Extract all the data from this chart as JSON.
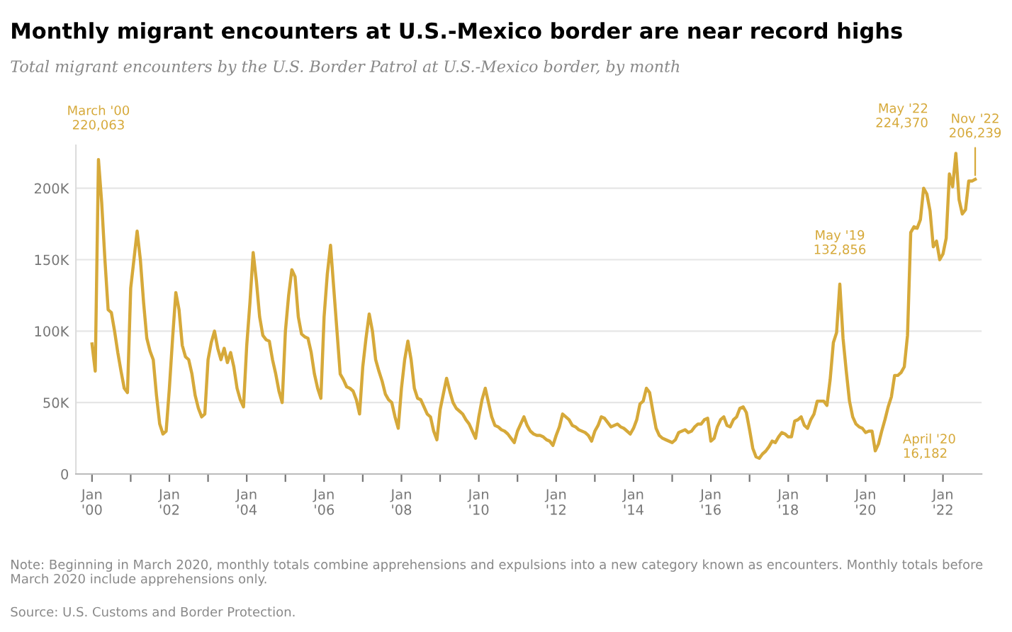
{
  "chart_data": {
    "type": "line",
    "title": "Monthly migrant encounters at U.S.-Mexico border are near record highs",
    "subtitle": "Total migrant encounters by the U.S. Border Patrol at U.S.-Mexico border, by month",
    "x": [
      "2000-01",
      "2000-02",
      "2000-03",
      "2000-04",
      "2000-05",
      "2000-06",
      "2000-07",
      "2000-08",
      "2000-09",
      "2000-10",
      "2000-11",
      "2000-12",
      "2001-01",
      "2001-02",
      "2001-03",
      "2001-04",
      "2001-05",
      "2001-06",
      "2001-07",
      "2001-08",
      "2001-09",
      "2001-10",
      "2001-11",
      "2001-12",
      "2002-01",
      "2002-02",
      "2002-03",
      "2002-04",
      "2002-05",
      "2002-06",
      "2002-07",
      "2002-08",
      "2002-09",
      "2002-10",
      "2002-11",
      "2002-12",
      "2003-01",
      "2003-02",
      "2003-03",
      "2003-04",
      "2003-05",
      "2003-06",
      "2003-07",
      "2003-08",
      "2003-09",
      "2003-10",
      "2003-11",
      "2003-12",
      "2004-01",
      "2004-02",
      "2004-03",
      "2004-04",
      "2004-05",
      "2004-06",
      "2004-07",
      "2004-08",
      "2004-09",
      "2004-10",
      "2004-11",
      "2004-12",
      "2005-01",
      "2005-02",
      "2005-03",
      "2005-04",
      "2005-05",
      "2005-06",
      "2005-07",
      "2005-08",
      "2005-09",
      "2005-10",
      "2005-11",
      "2005-12",
      "2006-01",
      "2006-02",
      "2006-03",
      "2006-04",
      "2006-05",
      "2006-06",
      "2006-07",
      "2006-08",
      "2006-09",
      "2006-10",
      "2006-11",
      "2006-12",
      "2007-01",
      "2007-02",
      "2007-03",
      "2007-04",
      "2007-05",
      "2007-06",
      "2007-07",
      "2007-08",
      "2007-09",
      "2007-10",
      "2007-11",
      "2007-12",
      "2008-01",
      "2008-02",
      "2008-03",
      "2008-04",
      "2008-05",
      "2008-06",
      "2008-07",
      "2008-08",
      "2008-09",
      "2008-10",
      "2008-11",
      "2008-12",
      "2009-01",
      "2009-02",
      "2009-03",
      "2009-04",
      "2009-05",
      "2009-06",
      "2009-07",
      "2009-08",
      "2009-09",
      "2009-10",
      "2009-11",
      "2009-12",
      "2010-01",
      "2010-02",
      "2010-03",
      "2010-04",
      "2010-05",
      "2010-06",
      "2010-07",
      "2010-08",
      "2010-09",
      "2010-10",
      "2010-11",
      "2010-12",
      "2011-01",
      "2011-02",
      "2011-03",
      "2011-04",
      "2011-05",
      "2011-06",
      "2011-07",
      "2011-08",
      "2011-09",
      "2011-10",
      "2011-11",
      "2011-12",
      "2012-01",
      "2012-02",
      "2012-03",
      "2012-04",
      "2012-05",
      "2012-06",
      "2012-07",
      "2012-08",
      "2012-09",
      "2012-10",
      "2012-11",
      "2012-12",
      "2013-01",
      "2013-02",
      "2013-03",
      "2013-04",
      "2013-05",
      "2013-06",
      "2013-07",
      "2013-08",
      "2013-09",
      "2013-10",
      "2013-11",
      "2013-12",
      "2014-01",
      "2014-02",
      "2014-03",
      "2014-04",
      "2014-05",
      "2014-06",
      "2014-07",
      "2014-08",
      "2014-09",
      "2014-10",
      "2014-11",
      "2014-12",
      "2015-01",
      "2015-02",
      "2015-03",
      "2015-04",
      "2015-05",
      "2015-06",
      "2015-07",
      "2015-08",
      "2015-09",
      "2015-10",
      "2015-11",
      "2015-12",
      "2016-01",
      "2016-02",
      "2016-03",
      "2016-04",
      "2016-05",
      "2016-06",
      "2016-07",
      "2016-08",
      "2016-09",
      "2016-10",
      "2016-11",
      "2016-12",
      "2017-01",
      "2017-02",
      "2017-03",
      "2017-04",
      "2017-05",
      "2017-06",
      "2017-07",
      "2017-08",
      "2017-09",
      "2017-10",
      "2017-11",
      "2017-12",
      "2018-01",
      "2018-02",
      "2018-03",
      "2018-04",
      "2018-05",
      "2018-06",
      "2018-07",
      "2018-08",
      "2018-09",
      "2018-10",
      "2018-11",
      "2018-12",
      "2019-01",
      "2019-02",
      "2019-03",
      "2019-04",
      "2019-05",
      "2019-06",
      "2019-07",
      "2019-08",
      "2019-09",
      "2019-10",
      "2019-11",
      "2019-12",
      "2020-01",
      "2020-02",
      "2020-03",
      "2020-04",
      "2020-05",
      "2020-06",
      "2020-07",
      "2020-08",
      "2020-09",
      "2020-10",
      "2020-11",
      "2020-12",
      "2021-01",
      "2021-02",
      "2021-03",
      "2021-04",
      "2021-05",
      "2021-06",
      "2021-07",
      "2021-08",
      "2021-09",
      "2021-10",
      "2021-11",
      "2021-12",
      "2022-01",
      "2022-02",
      "2022-03",
      "2022-04",
      "2022-05",
      "2022-06",
      "2022-07",
      "2022-08",
      "2022-09",
      "2022-10",
      "2022-11"
    ],
    "series": [
      {
        "color": "#d6a93a",
        "values": [
          91000,
          72000,
          220063,
          190000,
          150000,
          115000,
          113000,
          100000,
          85000,
          72000,
          60000,
          57000,
          130000,
          150000,
          170000,
          150000,
          120000,
          95000,
          86000,
          80000,
          55000,
          35000,
          28000,
          30000,
          60000,
          95000,
          127000,
          115000,
          90000,
          82000,
          80000,
          70000,
          55000,
          46000,
          40000,
          42000,
          80000,
          92000,
          100000,
          88000,
          80000,
          88000,
          78000,
          85000,
          75000,
          60000,
          52000,
          47000,
          90000,
          120000,
          155000,
          135000,
          110000,
          97000,
          94000,
          93000,
          80000,
          70000,
          58000,
          50000,
          100000,
          125000,
          143000,
          138000,
          110000,
          98000,
          96000,
          95000,
          85000,
          70000,
          60000,
          53000,
          110000,
          140000,
          160000,
          130000,
          100000,
          70000,
          66000,
          61000,
          60000,
          58000,
          52000,
          42000,
          75000,
          95000,
          112000,
          100000,
          80000,
          72000,
          65000,
          56000,
          52000,
          50000,
          40000,
          32000,
          60000,
          80000,
          93000,
          80000,
          60000,
          53000,
          52000,
          47000,
          42000,
          40000,
          30000,
          24000,
          45000,
          56000,
          67000,
          58000,
          50000,
          46000,
          44000,
          42000,
          38000,
          35000,
          30000,
          25000,
          40000,
          52000,
          60000,
          50000,
          40000,
          34000,
          33000,
          31000,
          30000,
          28000,
          25000,
          22000,
          30000,
          35000,
          40000,
          34000,
          30000,
          28000,
          27000,
          27000,
          26000,
          24000,
          23000,
          20000,
          27000,
          33000,
          42000,
          40000,
          38000,
          34000,
          33000,
          31000,
          30000,
          29000,
          27000,
          23000,
          30000,
          34000,
          40000,
          39000,
          36000,
          33000,
          34000,
          35000,
          33000,
          32000,
          30000,
          28000,
          32000,
          38000,
          49000,
          51000,
          60000,
          57000,
          44000,
          32000,
          27000,
          25000,
          24000,
          23000,
          22000,
          24000,
          29000,
          30000,
          31000,
          29000,
          30000,
          33000,
          35000,
          35000,
          38000,
          39000,
          23000,
          25000,
          33000,
          38000,
          40000,
          34000,
          33000,
          38000,
          40000,
          46000,
          47000,
          43000,
          31000,
          18000,
          12000,
          11000,
          14000,
          16000,
          19000,
          23000,
          22000,
          26000,
          29000,
          28000,
          26000,
          26000,
          37000,
          38000,
          40000,
          34000,
          32000,
          38000,
          42000,
          51000,
          51000,
          51000,
          48000,
          66000,
          92000,
          99000,
          132856,
          95000,
          72000,
          51000,
          40000,
          35000,
          33000,
          32000,
          29000,
          30000,
          30000,
          16182,
          21000,
          30000,
          38000,
          47000,
          54000,
          69000,
          69000,
          71000,
          75000,
          97000,
          169000,
          173000,
          172000,
          178000,
          200000,
          196000,
          184000,
          159000,
          163000,
          150000,
          154000,
          165000,
          210000,
          201000,
          224370,
          192000,
          182000,
          185000,
          205000,
          205000,
          206239
        ]
      }
    ],
    "xlim": [
      "1999-08",
      "2023-01"
    ],
    "xticks": [
      {
        "value": "2000-01",
        "label": "Jan\n'00"
      },
      {
        "value": "2001-01",
        "label": null
      },
      {
        "value": "2002-01",
        "label": "Jan\n'02"
      },
      {
        "value": "2003-01",
        "label": null
      },
      {
        "value": "2004-01",
        "label": "Jan\n'04"
      },
      {
        "value": "2005-01",
        "label": null
      },
      {
        "value": "2006-01",
        "label": "Jan\n'06"
      },
      {
        "value": "2007-01",
        "label": null
      },
      {
        "value": "2008-01",
        "label": "Jan\n'08"
      },
      {
        "value": "2009-01",
        "label": null
      },
      {
        "value": "2010-01",
        "label": "Jan\n'10"
      },
      {
        "value": "2011-01",
        "label": null
      },
      {
        "value": "2012-01",
        "label": "Jan\n'12"
      },
      {
        "value": "2013-01",
        "label": null
      },
      {
        "value": "2014-01",
        "label": "Jan\n'14"
      },
      {
        "value": "2015-01",
        "label": null
      },
      {
        "value": "2016-01",
        "label": "Jan\n'16"
      },
      {
        "value": "2017-01",
        "label": null
      },
      {
        "value": "2018-01",
        "label": "Jan\n'18"
      },
      {
        "value": "2019-01",
        "label": null
      },
      {
        "value": "2020-01",
        "label": "Jan\n'20"
      },
      {
        "value": "2021-01",
        "label": null
      },
      {
        "value": "2022-01",
        "label": "Jan\n'22"
      }
    ],
    "ylim": [
      0,
      230000
    ],
    "yticks": [
      0,
      {
        "value": 50000,
        "label": "50K"
      },
      {
        "value": 100000,
        "label": "100K"
      },
      {
        "value": 150000,
        "label": "150K"
      },
      {
        "value": 200000,
        "label": "200K"
      }
    ],
    "grid": "y",
    "marker": "none",
    "line_style": "solid",
    "annotations": [
      {
        "text": "March '00\n220,063",
        "x": "2000-03",
        "y": 220063
      },
      {
        "text": "May '19\n132,856",
        "x": "2019-05",
        "y": 132856
      },
      {
        "text": "April '20\n16,182",
        "x": "2020-04",
        "y": 16182
      },
      {
        "text": "May '22\n224,370",
        "x": "2022-05",
        "y": 224370
      },
      {
        "text": "Nov '22\n206,239",
        "x": "2022-11",
        "y": 206239
      },
      "Note: Beginning in March 2020, monthly totals combine apprehensions and expulsions into a new category known as encounters. Monthly totals before March 2020 include apprehensions only.",
      "Source: U.S. Customs and Border Protection."
    ]
  }
}
